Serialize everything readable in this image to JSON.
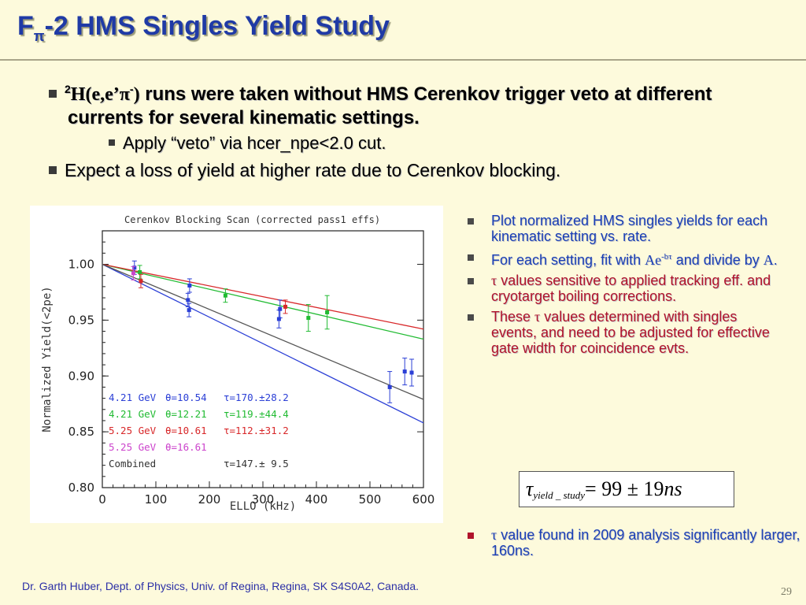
{
  "slide": {
    "title_F": "F",
    "title_sub": "π",
    "title_rest": "-2 HMS Singles Yield Study",
    "bullet1_sup": "2",
    "bullet1_reaction": "H(e,e’π",
    "bullet1_sup2": "-",
    "bullet1_paren": ")",
    "bullet1_text": " runs were taken without HMS Cerenkov trigger veto at different currents for several kinematic settings.",
    "bullet2_text": "Apply “veto” via hcer_npe<2.0 cut.",
    "bullet3_text": "Expect a loss of yield at higher rate due to Cerenkov blocking.",
    "right1": "Plot normalized HMS singles yields for each kinematic setting vs. rate.",
    "right2_a": "For each setting, fit with ",
    "right2_fn": "Ae",
    "right2_sup": "-bτ",
    "right2_b": " and divide by ",
    "right2_A": "A",
    "right2_c": ".",
    "right3_tau": "τ",
    "right3_text": " values sensitive to applied tracking eff. and cryotarget boiling corrections.",
    "right4_a": "These ",
    "right4_tau": "τ",
    "right4_b": " values determined with singles events, and need to be adjusted for effective gate width for coincidence evts.",
    "eq_tau": "τ",
    "eq_sub": "yield _ study",
    "eq_rhs": " = 99 ± 19",
    "eq_unit": "ns",
    "last_tau": "τ",
    "last_text": " value found in 2009 analysis significantly larger, 160ns.",
    "footer": "Dr. Garth Huber, Dept. of Physics, Univ. of Regina, Regina, SK S4S0A2, Canada.",
    "page": "29"
  },
  "colors": {
    "title": "#1f3aa6",
    "background": "#fdfadc",
    "blue_text": "#1a3fb5",
    "red_text": "#b0132b"
  },
  "chart_data": {
    "type": "scatter",
    "title": "Cerenkov Blocking Scan (corrected pass1 effs)",
    "xlabel": "ELLO (kHz)",
    "ylabel": "Normalized Yield(<2pe)",
    "xlim": [
      0,
      600
    ],
    "ylim": [
      0.8,
      1.03
    ],
    "xticks": [
      "0",
      "100",
      "200",
      "300",
      "400",
      "500",
      "600"
    ],
    "yticks": [
      "0.80",
      "0.85",
      "0.90",
      "0.95",
      "1.00"
    ],
    "series": [
      {
        "name": "4.21 GeV",
        "color": "#2b3fd6",
        "points": [
          [
            60,
            0.997,
            0.006
          ],
          [
            160,
            0.968,
            0.006
          ],
          [
            162,
            0.959,
            0.006
          ],
          [
            163,
            0.981,
            0.006
          ],
          [
            330,
            0.951,
            0.008
          ],
          [
            332,
            0.96,
            0.008
          ],
          [
            537,
            0.89,
            0.014
          ],
          [
            565,
            0.904,
            0.012
          ],
          [
            578,
            0.903,
            0.012
          ]
        ]
      },
      {
        "name": "4.21 GeV",
        "color": "#22bb33",
        "points": [
          [
            70,
            0.993,
            0.006
          ],
          [
            230,
            0.972,
            0.006
          ],
          [
            385,
            0.952,
            0.012
          ],
          [
            420,
            0.957,
            0.015
          ]
        ]
      },
      {
        "name": "5.25 GeV",
        "color": "#d8282a",
        "points": [
          [
            72,
            0.985,
            0.006
          ],
          [
            342,
            0.962,
            0.006
          ]
        ]
      },
      {
        "name": "5.25 GeV",
        "color": "#cc44cc",
        "points": [
          [
            58,
            0.992,
            0.006
          ]
        ]
      }
    ],
    "fits": [
      {
        "color": "#2b3fd6",
        "y0": 1.0,
        "y600": 0.858
      },
      {
        "color": "#22bb33",
        "y0": 1.0,
        "y600": 0.933
      },
      {
        "color": "#d8282a",
        "y0": 1.0,
        "y600": 0.942
      },
      {
        "color": "#555555",
        "y0": 1.0,
        "y600": 0.879
      }
    ],
    "legend": [
      {
        "energy": "4.21 GeV",
        "theta": "θ=10.54",
        "tau": "τ=170.±28.2",
        "color": "#2b3fd6"
      },
      {
        "energy": "4.21 GeV",
        "theta": "θ=12.21",
        "tau": "τ=119.±44.4",
        "color": "#22bb33"
      },
      {
        "energy": "5.25 GeV",
        "theta": "θ=10.61",
        "tau": "τ=112.±31.2",
        "color": "#d8282a"
      },
      {
        "energy": "5.25 GeV",
        "theta": "θ=16.61",
        "tau": "",
        "color": "#cc44cc"
      },
      {
        "energy": "Combined",
        "theta": "",
        "tau": "τ=147.± 9.5",
        "color": "#333333"
      }
    ],
    "legend_position": "bottom-left"
  }
}
